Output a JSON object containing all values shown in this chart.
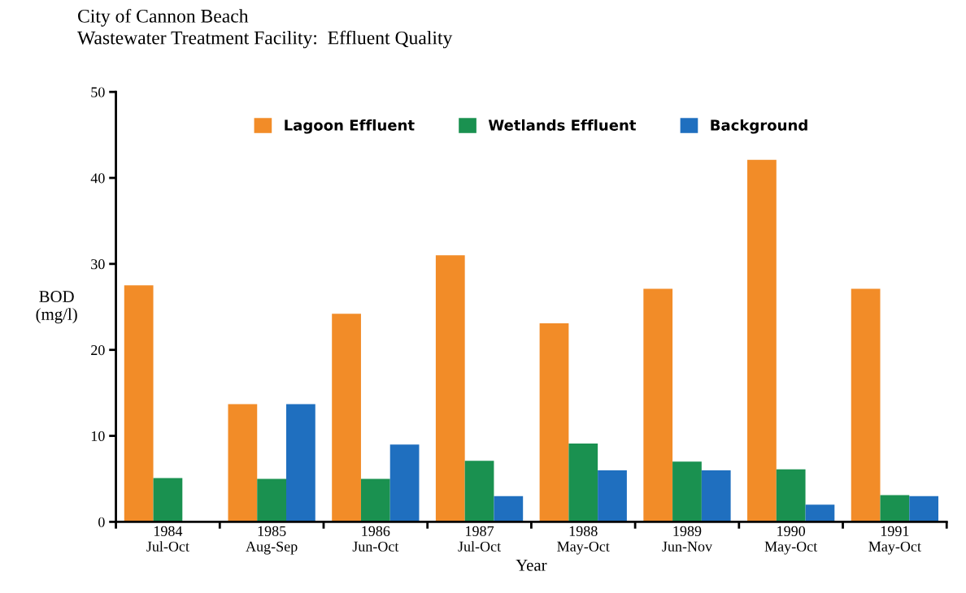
{
  "chart_data": {
    "type": "bar",
    "title": "City of Cannon Beach\nWastewater Treatment Facility:  Effluent Quality",
    "categories": [
      "1984\nJul-Oct",
      "1985\nAug-Sep",
      "1986\nJun-Oct",
      "1987\nJul-Oct",
      "1988\nMay-Oct",
      "1989\nJun-Nov",
      "1990\nMay-Oct",
      "1991\nMay-Oct"
    ],
    "series": [
      {
        "name": "Lagoon Effluent",
        "color": "#f28c28",
        "values": [
          27.5,
          13.7,
          24.2,
          31.0,
          23.1,
          27.1,
          42.1,
          27.1
        ]
      },
      {
        "name": "Wetlands Effluent",
        "color": "#1a9150",
        "values": [
          5.1,
          5.0,
          5.0,
          7.1,
          9.1,
          7.0,
          6.1,
          3.1
        ]
      },
      {
        "name": "Background",
        "color": "#1f6fbf",
        "values": [
          null,
          13.7,
          9.0,
          3.0,
          6.0,
          6.0,
          2.0,
          3.0
        ]
      }
    ],
    "xlabel": "Year",
    "ylabel": "BOD\n(mg/l)",
    "ylim": [
      0,
      50
    ],
    "yticks": [
      0,
      10,
      20,
      30,
      40,
      50
    ],
    "grid": false,
    "legend": "top"
  }
}
